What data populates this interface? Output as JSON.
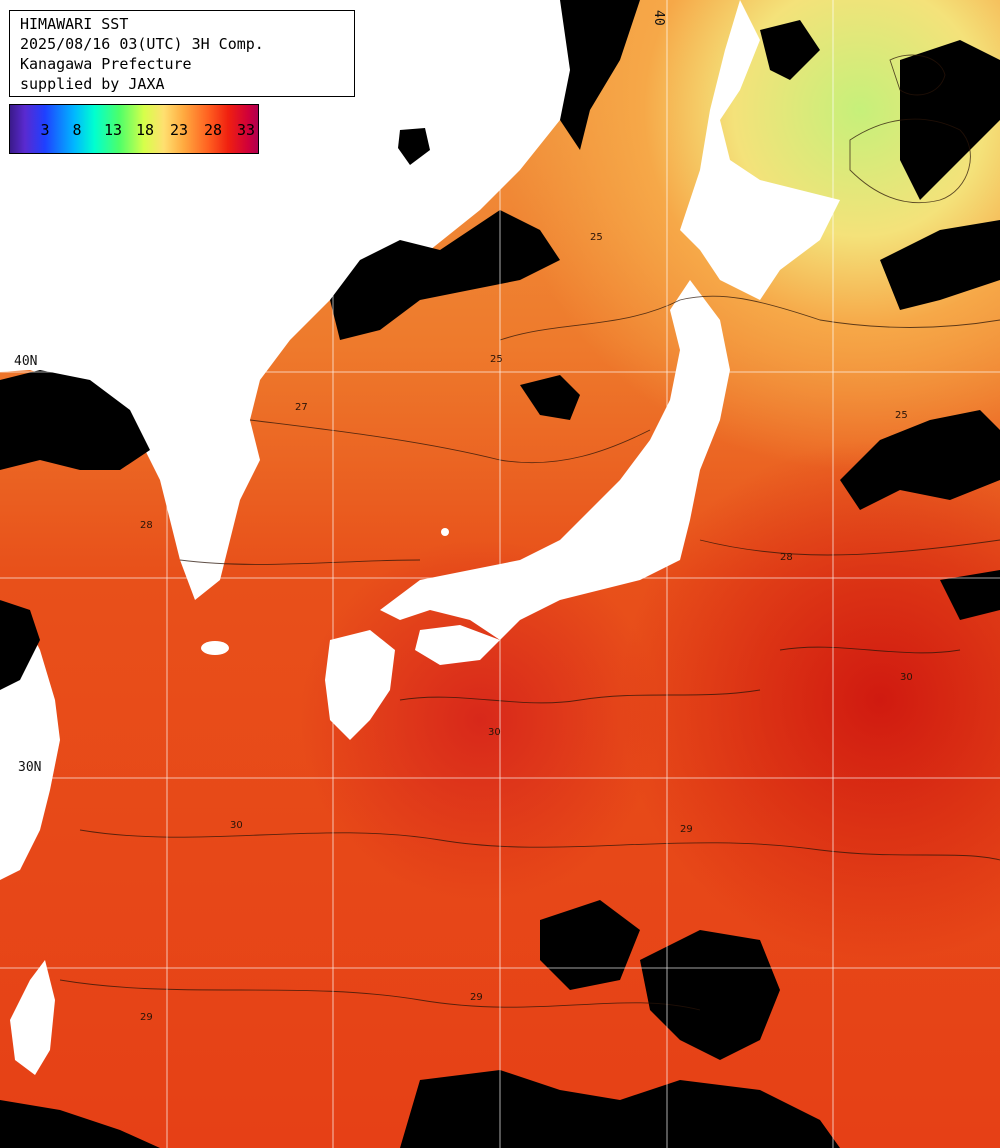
{
  "header": {
    "lines": [
      "HIMAWARI SST",
      "2025/08/16 03(UTC) 3H Comp.",
      "Kanagawa Prefecture",
      "supplied by JAXA"
    ]
  },
  "legend": {
    "ticks": [
      "3",
      "8",
      "13",
      "18",
      "23",
      "28",
      "33"
    ]
  },
  "grid": {
    "labels": [
      {
        "id": "lat-40",
        "text": "40N"
      },
      {
        "id": "lat-30",
        "text": "30N"
      },
      {
        "id": "lon-40-top",
        "text": "40"
      }
    ]
  },
  "contour_labels": [
    "25",
    "25",
    "25",
    "27",
    "28",
    "28",
    "29",
    "29",
    "29",
    "30",
    "30",
    "30"
  ],
  "colors": {
    "ocean_warm": "#e8501a",
    "ocean_hot": "#d42a10",
    "ocean_cool": "#f2963a",
    "ocean_cold": "#e6f07a",
    "land": "#ffffff",
    "cloud": "#000000",
    "grid": "#ffffff"
  }
}
